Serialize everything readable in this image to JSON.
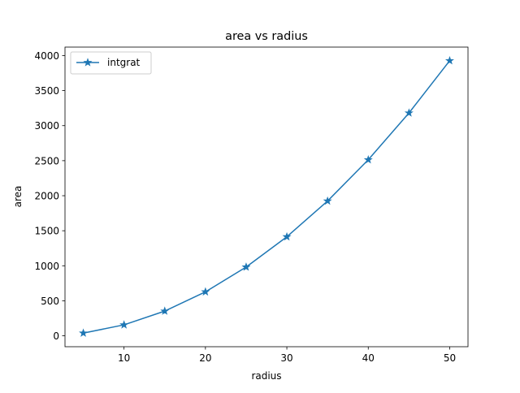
{
  "chart_data": {
    "type": "line",
    "title": "area vs radius",
    "xlabel": "radius",
    "ylabel": "area",
    "xlim": [
      2.75,
      52.25
    ],
    "ylim": [
      -155.4,
      4121.2
    ],
    "xticks": [
      10,
      20,
      30,
      40,
      50
    ],
    "yticks": [
      0,
      500,
      1000,
      1500,
      2000,
      2500,
      3000,
      3500,
      4000
    ],
    "x": [
      5,
      10,
      15,
      20,
      25,
      30,
      35,
      40,
      45,
      50
    ],
    "series": [
      {
        "name": "intgrat",
        "color": "#1f77b4",
        "marker": "star",
        "values": [
          39,
          157,
          353,
          628,
          982,
          1414,
          1924,
          2513,
          3181,
          3927
        ]
      }
    ],
    "grid": false,
    "legend_position": "top-left"
  }
}
